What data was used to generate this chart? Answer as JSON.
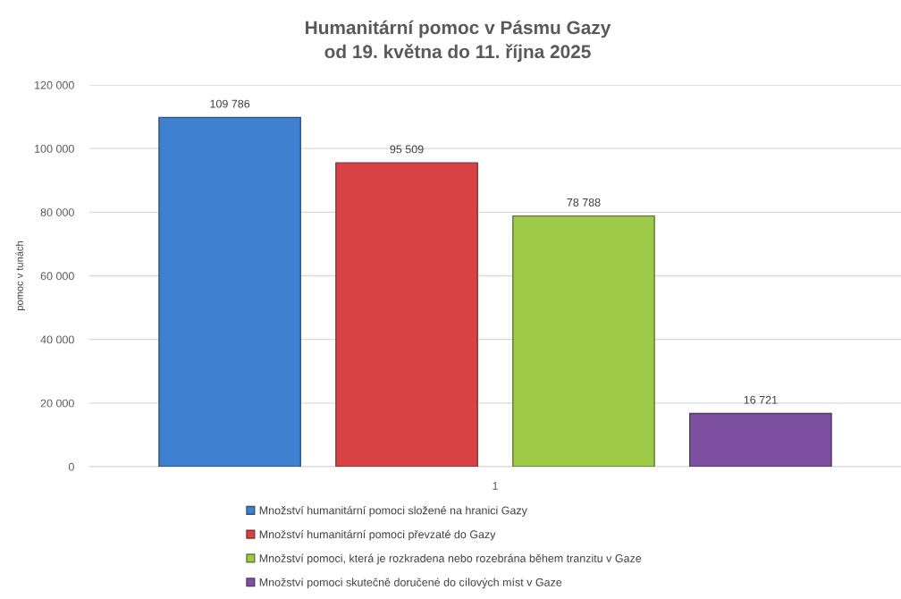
{
  "chart_data": {
    "type": "bar",
    "title": "Humanitární pomoc v Pásmu Gazy\nod 19. května do 11. října 2025",
    "ylabel": "pomoc v tunách",
    "categories": [
      "1"
    ],
    "series": [
      {
        "name": "Množství humanitární pomoci složené na hranici Gazy",
        "color": "#3f7fd0",
        "values": [
          109786
        ],
        "value_labels": [
          "109 786"
        ]
      },
      {
        "name": "Množství humanitární pomoci převzaté do Gazy",
        "color": "#d94242",
        "values": [
          95509
        ],
        "value_labels": [
          "95 509"
        ]
      },
      {
        "name": "Množství pomoci, která je rozkradena nebo rozebrána během tranzitu v Gaze",
        "color": "#9dcb47",
        "values": [
          78788
        ],
        "value_labels": [
          "78 788"
        ]
      },
      {
        "name": "Množství pomoci skutečně doručené do cílových míst v Gaze",
        "color": "#7d4fa1",
        "values": [
          16721
        ],
        "value_labels": [
          "16 721"
        ]
      }
    ],
    "ylim": [
      0,
      120000
    ],
    "yticks": [
      0,
      {
        "value": 20000,
        "label": "20 000"
      },
      {
        "value": 40000,
        "label": "40 000"
      },
      {
        "value": 60000,
        "label": "60 000"
      },
      {
        "value": 80000,
        "label": "80 000"
      },
      {
        "value": 100000,
        "label": "100 000"
      },
      {
        "value": 120000,
        "label": "120 000"
      }
    ],
    "grid": "y",
    "legend": "bottom"
  }
}
